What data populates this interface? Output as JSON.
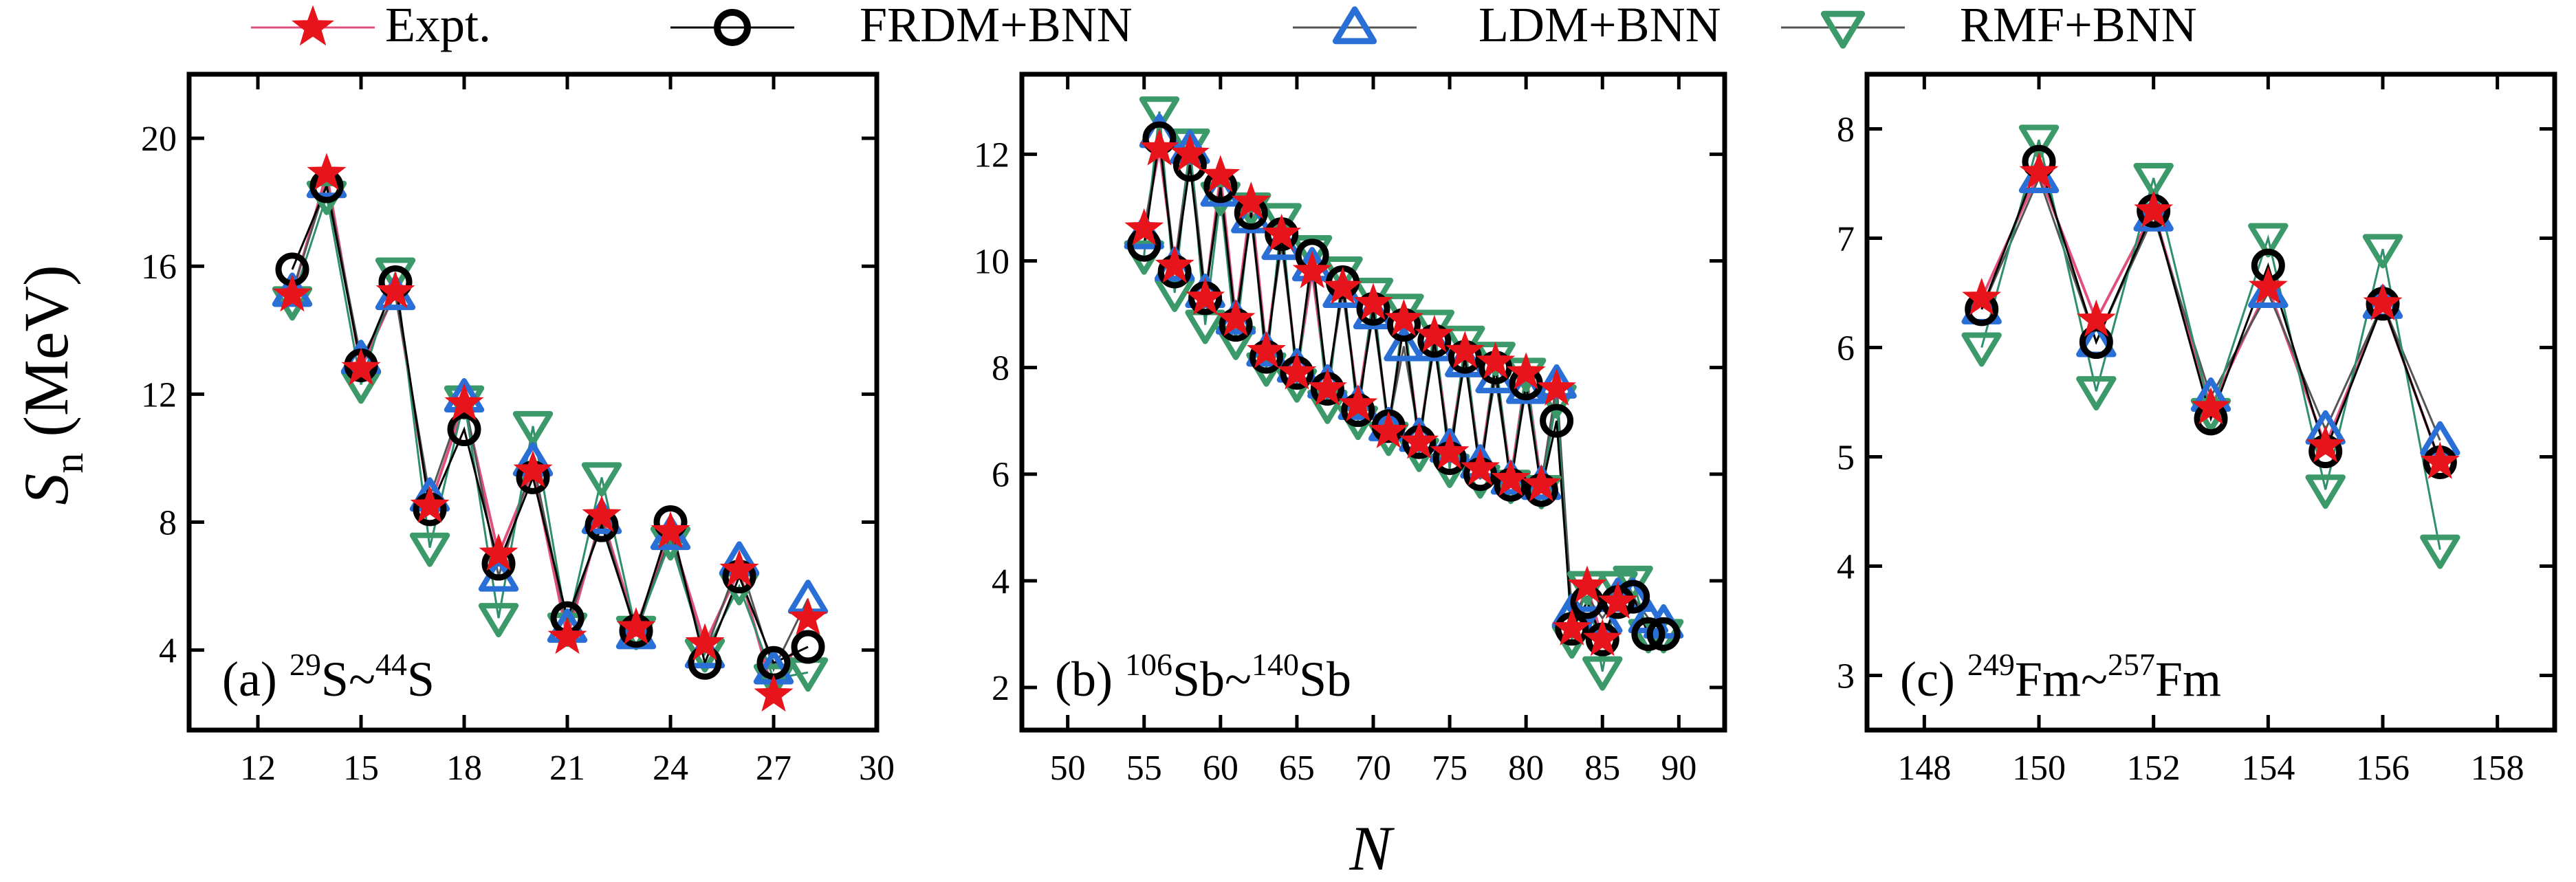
{
  "legend": [
    {
      "label": "Expt.",
      "marker": "star",
      "color": "#e8141c",
      "line": "#e0507a"
    },
    {
      "label": "FRDM+BNN",
      "marker": "circle",
      "color": "#000000",
      "line": "#000000"
    },
    {
      "label": "LDM+BNN",
      "marker": "triangle-up",
      "color": "#2a6fd6",
      "line": "#555555"
    },
    {
      "label": "RMF+BNN",
      "marker": "triangle-down",
      "color": "#3c9a6a",
      "line": "#555555"
    }
  ],
  "xlabel": "N",
  "ylabel": "S",
  "ylabel_sub": "n",
  "ylabel_unit": " (MeV)",
  "chart_data": [
    {
      "type": "line",
      "panel_label": {
        "prefix": "(a) ",
        "A1": "29",
        "E1": "S",
        "sep": "~",
        "A2": "44",
        "E2": "S"
      },
      "xlim": [
        10,
        30
      ],
      "ylim": [
        1.5,
        22
      ],
      "xticks": [
        12,
        15,
        18,
        21,
        24,
        27,
        30
      ],
      "yticks": [
        4,
        8,
        12,
        16,
        20
      ],
      "x": [
        13,
        14,
        15,
        16,
        17,
        18,
        19,
        20,
        21,
        22,
        23,
        24,
        25,
        26,
        27,
        28
      ],
      "series": [
        {
          "name": "Expt.",
          "values": [
            15.1,
            18.9,
            12.8,
            15.2,
            8.5,
            11.7,
            7.0,
            9.6,
            4.4,
            8.2,
            4.7,
            7.7,
            4.2,
            6.5,
            2.6,
            5.0
          ]
        },
        {
          "name": "FRDM+BNN",
          "values": [
            15.9,
            18.5,
            12.9,
            15.5,
            8.4,
            10.9,
            6.7,
            9.4,
            5.0,
            7.9,
            4.6,
            8.0,
            3.6,
            6.3,
            3.6,
            4.1
          ]
        },
        {
          "name": "LDM+BNN",
          "values": [
            15.2,
            18.6,
            13.1,
            15.1,
            8.8,
            11.9,
            6.3,
            9.9,
            4.7,
            8.1,
            4.5,
            7.6,
            3.9,
            6.8,
            3.4,
            5.6
          ]
        },
        {
          "name": "RMF+BNN",
          "values": [
            14.9,
            18.2,
            12.3,
            15.8,
            7.2,
            11.8,
            5.0,
            11.0,
            4.7,
            9.4,
            4.6,
            7.4,
            3.9,
            6.0,
            3.1,
            3.3
          ]
        }
      ]
    },
    {
      "type": "line",
      "panel_label": {
        "prefix": "(b) ",
        "A1": "106",
        "E1": "Sb",
        "sep": "~",
        "A2": "140",
        "E2": "Sb"
      },
      "xlim": [
        47,
        93
      ],
      "ylim": [
        1.2,
        13.5
      ],
      "xticks": [
        50,
        55,
        60,
        65,
        70,
        75,
        80,
        85,
        90
      ],
      "yticks": [
        2,
        4,
        6,
        8,
        10,
        12
      ],
      "x": [
        55,
        56,
        57,
        58,
        59,
        60,
        61,
        62,
        63,
        64,
        65,
        66,
        67,
        68,
        69,
        70,
        71,
        72,
        73,
        74,
        75,
        76,
        77,
        78,
        79,
        80,
        81,
        82,
        83,
        84,
        85,
        86,
        87,
        88,
        89
      ],
      "series": [
        {
          "name": "Expt.",
          "values": [
            10.6,
            12.1,
            9.9,
            12.0,
            9.3,
            11.6,
            8.9,
            11.1,
            8.3,
            10.5,
            7.9,
            9.8,
            7.6,
            9.5,
            7.3,
            9.2,
            6.8,
            8.9,
            6.6,
            8.6,
            6.4,
            8.3,
            6.1,
            8.1,
            5.9,
            7.9,
            5.8,
            7.6,
            3.1,
            3.9,
            2.9,
            3.6,
            null,
            null,
            null
          ]
        },
        {
          "name": "FRDM+BNN",
          "values": [
            10.3,
            12.3,
            9.8,
            11.8,
            9.3,
            11.4,
            8.8,
            10.9,
            8.2,
            10.5,
            7.9,
            10.1,
            7.6,
            9.6,
            7.2,
            9.1,
            6.9,
            8.8,
            6.6,
            8.5,
            6.3,
            8.2,
            6.0,
            8.0,
            5.8,
            7.7,
            5.7,
            7.0,
            3.1,
            3.6,
            2.9,
            3.6,
            3.7,
            3.0,
            3.0
          ]
        },
        {
          "name": "LDM+BNN",
          "values": [
            10.5,
            12.4,
            9.9,
            12.1,
            9.4,
            11.3,
            8.9,
            10.8,
            8.3,
            10.3,
            8.0,
            9.9,
            7.7,
            9.4,
            7.3,
            9.0,
            6.9,
            8.4,
            6.7,
            8.4,
            6.5,
            8.1,
            6.2,
            7.8,
            5.9,
            7.6,
            5.8,
            7.7,
            3.4,
            3.7,
            3.3,
            3.7,
            3.7,
            3.3,
            3.2
          ]
        },
        {
          "name": "RMF+BNN",
          "values": [
            10.1,
            12.8,
            9.4,
            12.2,
            8.8,
            11.2,
            8.5,
            11.0,
            8.0,
            10.8,
            7.7,
            10.2,
            7.3,
            9.8,
            7.0,
            9.4,
            6.7,
            9.1,
            6.4,
            8.8,
            6.1,
            8.5,
            5.9,
            8.2,
            5.8,
            7.9,
            5.7,
            7.4,
            2.9,
            3.9,
            2.3,
            3.9,
            4.0,
            3.0,
            3.0
          ]
        }
      ]
    },
    {
      "type": "line",
      "panel_label": {
        "prefix": "(c) ",
        "A1": "249",
        "E1": "Fm",
        "sep": "~",
        "A2": "257",
        "E2": "Fm"
      },
      "xlim": [
        147,
        159
      ],
      "ylim": [
        2.5,
        8.5
      ],
      "xticks": [
        148,
        150,
        152,
        154,
        156,
        158
      ],
      "yticks": [
        3,
        4,
        5,
        6,
        7,
        8
      ],
      "x": [
        149,
        150,
        151,
        152,
        153,
        154,
        155,
        156,
        157
      ],
      "series": [
        {
          "name": "Expt.",
          "values": [
            6.45,
            7.6,
            6.25,
            7.25,
            5.45,
            6.55,
            5.1,
            6.4,
            4.95
          ]
        },
        {
          "name": "FRDM+BNN",
          "values": [
            6.35,
            7.7,
            6.05,
            7.25,
            5.35,
            6.75,
            5.05,
            6.4,
            4.95
          ]
        },
        {
          "name": "LDM+BNN",
          "values": [
            6.35,
            7.55,
            6.05,
            7.2,
            5.55,
            6.5,
            5.25,
            6.4,
            5.15
          ]
        },
        {
          "name": "RMF+BNN",
          "values": [
            6.0,
            7.9,
            5.6,
            7.55,
            5.4,
            7.0,
            4.7,
            6.9,
            4.15
          ]
        }
      ]
    }
  ]
}
